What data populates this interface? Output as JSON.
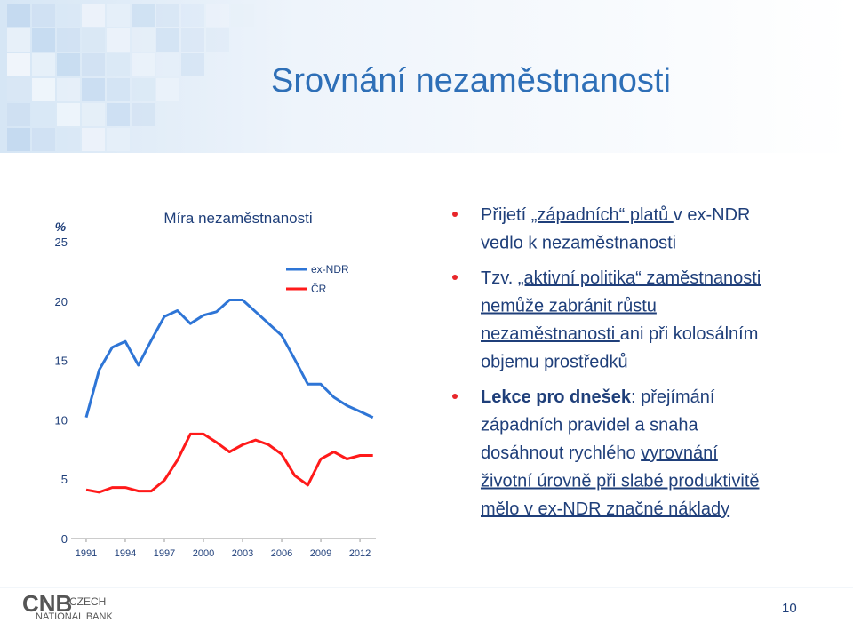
{
  "title": "Srovnání nezaměstnanosti",
  "chart_data": {
    "type": "line",
    "title": "Míra nezaměstnanosti",
    "y_unit": "%",
    "x": [
      1991,
      1992,
      1993,
      1994,
      1995,
      1996,
      1997,
      1998,
      1999,
      2000,
      2001,
      2002,
      2003,
      2004,
      2005,
      2006,
      2007,
      2008,
      2009,
      2010,
      2011,
      2012,
      2013
    ],
    "series": [
      {
        "name": "ex-NDR",
        "color": "#2e75d6",
        "values": [
          10.2,
          14.2,
          16.1,
          16.6,
          14.6,
          16.7,
          18.7,
          19.2,
          18.1,
          18.8,
          19.1,
          20.1,
          20.1,
          19.1,
          18.1,
          17.1,
          15.1,
          13.0,
          13.0,
          11.9,
          11.2,
          10.7,
          10.2
        ]
      },
      {
        "name": "ČR",
        "color": "#ff1a1a",
        "values": [
          4.1,
          3.9,
          4.3,
          4.3,
          4.0,
          4.0,
          4.9,
          6.6,
          8.8,
          8.8,
          8.1,
          7.3,
          7.9,
          8.3,
          7.9,
          7.1,
          5.3,
          4.5,
          6.7,
          7.3,
          6.7,
          7.0,
          7.0
        ]
      }
    ],
    "xlim": [
      1990,
      2014
    ],
    "xticks": [
      1991,
      1994,
      1997,
      2000,
      2003,
      2006,
      2009,
      2012
    ],
    "ylim": [
      0,
      25
    ],
    "yticks": [
      0,
      5,
      10,
      15,
      20,
      25
    ],
    "grid": false,
    "legend": "top-right"
  },
  "bullets": [
    [
      [
        {
          "text": "Přijetí ",
          "style": "plain"
        },
        {
          "text": "„západních“ platů ",
          "style": "underline"
        },
        {
          "text": "v ex-NDR",
          "style": "plain"
        }
      ],
      [
        {
          "text": "vedlo k nezaměstnanosti",
          "style": "plain"
        }
      ]
    ],
    [
      [
        {
          "text": "Tzv. ",
          "style": "plain"
        },
        {
          "text": "„aktivní politika“ zaměstnanosti",
          "style": "underline"
        }
      ],
      [
        {
          "text": "nemůže zabránit růstu",
          "style": "underline"
        }
      ],
      [
        {
          "text": "nezaměstnanosti ",
          "style": "underline"
        },
        {
          "text": "ani při kolosálním",
          "style": "plain"
        }
      ],
      [
        {
          "text": "objemu prostředků",
          "style": "plain"
        }
      ]
    ],
    [
      [
        {
          "text": "Lekce pro dnešek",
          "style": "bold"
        },
        {
          "text": ": přejímání",
          "style": "plain"
        }
      ],
      [
        {
          "text": "západních pravidel a snaha",
          "style": "plain"
        }
      ],
      [
        {
          "text": "dosáhnout rychlého ",
          "style": "plain"
        },
        {
          "text": "vyrovnání",
          "style": "underline"
        }
      ],
      [
        {
          "text": "životní úrovně při slabé produktivitě",
          "style": "underline"
        }
      ],
      [
        {
          "text": "mělo v ex-NDR značné náklady",
          "style": "underline"
        }
      ]
    ]
  ],
  "logo": {
    "mark": "CNB",
    "line1": "CZECH",
    "line2": "NATIONAL BANK"
  },
  "page_number": "10"
}
